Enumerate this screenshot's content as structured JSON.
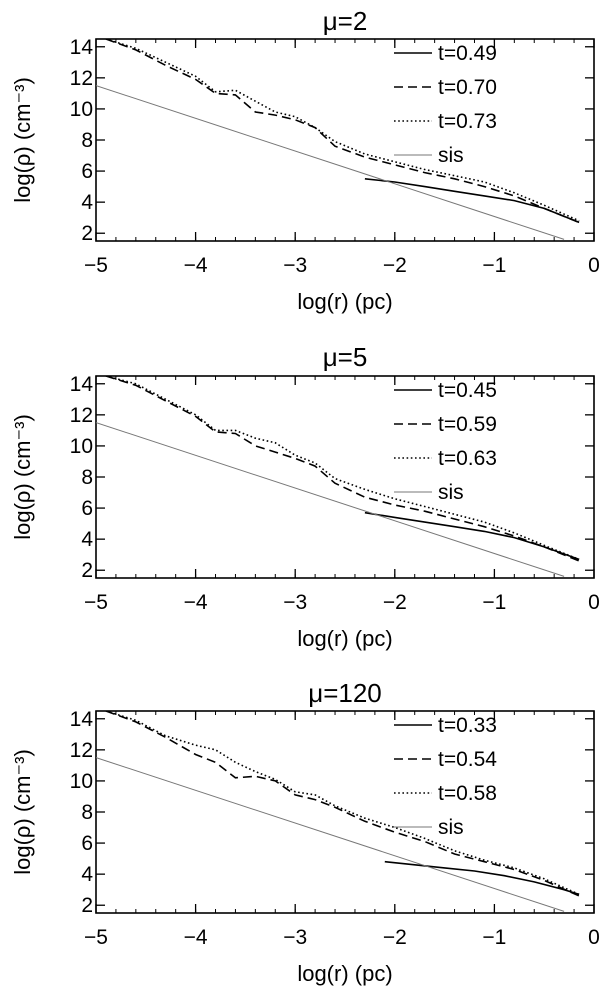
{
  "chart_data": [
    {
      "type": "line",
      "title": "μ=2",
      "xlabel": "log(r)  (pc)",
      "ylabel": "log(ρ)  (cm⁻³)",
      "xlim": [
        -5,
        0
      ],
      "ylim": [
        1.5,
        14.5
      ],
      "xticks": [
        -5,
        -4,
        -3,
        -2,
        -1,
        0
      ],
      "yticks": [
        2,
        4,
        6,
        8,
        10,
        12,
        14
      ],
      "xtick_labels": [
        "−5",
        "−4",
        "−3",
        "−2",
        "−1",
        "0"
      ],
      "ytick_labels": [
        "2",
        "4",
        "6",
        "8",
        "10",
        "12",
        "14"
      ],
      "legend_position": "top-right",
      "series": [
        {
          "name": "t=0.49",
          "style": "solid",
          "color": "#000000",
          "x": [
            -2.3,
            -2.0,
            -1.7,
            -1.4,
            -1.1,
            -0.8,
            -0.5,
            -0.15
          ],
          "y": [
            5.5,
            5.3,
            5.0,
            4.7,
            4.4,
            4.1,
            3.6,
            2.7
          ]
        },
        {
          "name": "t=0.70",
          "style": "dashed",
          "color": "#000000",
          "x": [
            -4.9,
            -4.6,
            -4.3,
            -4.0,
            -3.8,
            -3.6,
            -3.4,
            -3.2,
            -3.0,
            -2.8,
            -2.6,
            -2.3,
            -2.0,
            -1.7,
            -1.4,
            -1.1,
            -0.8,
            -0.5,
            -0.15
          ],
          "y": [
            14.5,
            13.8,
            12.8,
            11.9,
            11.0,
            10.9,
            9.8,
            9.6,
            9.3,
            8.8,
            7.6,
            6.9,
            6.4,
            5.9,
            5.5,
            5.0,
            4.4,
            3.6,
            2.7
          ]
        },
        {
          "name": "t=0.73",
          "style": "dotted",
          "color": "#000000",
          "x": [
            -4.9,
            -4.6,
            -4.3,
            -4.0,
            -3.8,
            -3.6,
            -3.4,
            -3.2,
            -3.0,
            -2.8,
            -2.6,
            -2.3,
            -2.0,
            -1.7,
            -1.4,
            -1.1,
            -0.8,
            -0.5,
            -0.15
          ],
          "y": [
            14.5,
            13.9,
            13.0,
            12.1,
            11.1,
            11.2,
            10.5,
            9.8,
            9.5,
            8.8,
            7.9,
            7.1,
            6.6,
            6.1,
            5.7,
            5.3,
            4.6,
            3.8,
            2.8
          ]
        },
        {
          "name": "sis",
          "style": "solid-thin",
          "color": "#777777",
          "x": [
            -5,
            -0.3
          ],
          "y": [
            11.5,
            1.6
          ]
        }
      ]
    },
    {
      "type": "line",
      "title": "μ=5",
      "xlabel": "log(r)  (pc)",
      "ylabel": "log(ρ)  (cm⁻³)",
      "xlim": [
        -5,
        0
      ],
      "ylim": [
        1.5,
        14.5
      ],
      "xticks": [
        -5,
        -4,
        -3,
        -2,
        -1,
        0
      ],
      "yticks": [
        2,
        4,
        6,
        8,
        10,
        12,
        14
      ],
      "xtick_labels": [
        "−5",
        "−4",
        "−3",
        "−2",
        "−1",
        "0"
      ],
      "ytick_labels": [
        "2",
        "4",
        "6",
        "8",
        "10",
        "12",
        "14"
      ],
      "legend_position": "top-right",
      "series": [
        {
          "name": "t=0.45",
          "style": "solid",
          "color": "#000000",
          "x": [
            -2.3,
            -2.0,
            -1.7,
            -1.4,
            -1.1,
            -0.8,
            -0.5,
            -0.15
          ],
          "y": [
            5.7,
            5.4,
            5.1,
            4.8,
            4.5,
            4.1,
            3.5,
            2.7
          ]
        },
        {
          "name": "t=0.59",
          "style": "dashed",
          "color": "#000000",
          "x": [
            -4.9,
            -4.6,
            -4.3,
            -4.0,
            -3.8,
            -3.6,
            -3.4,
            -3.2,
            -3.0,
            -2.8,
            -2.6,
            -2.3,
            -2.0,
            -1.7,
            -1.4,
            -1.1,
            -0.8,
            -0.5,
            -0.15
          ],
          "y": [
            14.5,
            13.9,
            12.9,
            11.9,
            10.9,
            10.8,
            10.0,
            9.6,
            9.2,
            8.7,
            7.6,
            6.7,
            6.2,
            5.8,
            5.3,
            4.8,
            4.2,
            3.5,
            2.6
          ]
        },
        {
          "name": "t=0.63",
          "style": "dotted",
          "color": "#000000",
          "x": [
            -4.9,
            -4.6,
            -4.3,
            -4.0,
            -3.8,
            -3.6,
            -3.4,
            -3.2,
            -3.0,
            -2.8,
            -2.6,
            -2.3,
            -2.0,
            -1.7,
            -1.4,
            -1.1,
            -0.8,
            -0.5,
            -0.15
          ],
          "y": [
            14.5,
            14.0,
            13.0,
            12.0,
            11.0,
            11.0,
            10.5,
            10.2,
            9.4,
            8.9,
            7.9,
            7.2,
            6.6,
            6.1,
            5.6,
            5.1,
            4.4,
            3.6,
            2.7
          ]
        },
        {
          "name": "sis",
          "style": "solid-thin",
          "color": "#777777",
          "x": [
            -5,
            -0.3
          ],
          "y": [
            11.5,
            1.6
          ]
        }
      ]
    },
    {
      "type": "line",
      "title": "μ=120",
      "xlabel": "log(r)  (pc)",
      "ylabel": "log(ρ)  (cm⁻³)",
      "xlim": [
        -5,
        0
      ],
      "ylim": [
        1.5,
        14.5
      ],
      "xticks": [
        -5,
        -4,
        -3,
        -2,
        -1,
        0
      ],
      "yticks": [
        2,
        4,
        6,
        8,
        10,
        12,
        14
      ],
      "xtick_labels": [
        "−5",
        "−4",
        "−3",
        "−2",
        "−1",
        "0"
      ],
      "ytick_labels": [
        "2",
        "4",
        "6",
        "8",
        "10",
        "12",
        "14"
      ],
      "legend_position": "top-right",
      "series": [
        {
          "name": "t=0.33",
          "style": "solid",
          "color": "#000000",
          "x": [
            -2.1,
            -1.8,
            -1.5,
            -1.2,
            -0.9,
            -0.6,
            -0.3,
            -0.15
          ],
          "y": [
            4.8,
            4.6,
            4.4,
            4.2,
            3.9,
            3.5,
            3.0,
            2.7
          ]
        },
        {
          "name": "t=0.54",
          "style": "dashed",
          "color": "#000000",
          "x": [
            -4.9,
            -4.6,
            -4.3,
            -4.0,
            -3.8,
            -3.6,
            -3.4,
            -3.2,
            -3.0,
            -2.8,
            -2.6,
            -2.3,
            -2.0,
            -1.7,
            -1.4,
            -1.1,
            -0.8,
            -0.5,
            -0.15
          ],
          "y": [
            14.5,
            13.8,
            12.8,
            11.7,
            11.2,
            10.2,
            10.3,
            10.0,
            9.1,
            8.8,
            8.3,
            7.4,
            6.7,
            6.1,
            5.3,
            4.8,
            4.3,
            3.6,
            2.6
          ]
        },
        {
          "name": "t=0.58",
          "style": "dotted",
          "color": "#000000",
          "x": [
            -4.9,
            -4.6,
            -4.3,
            -4.0,
            -3.8,
            -3.6,
            -3.4,
            -3.2,
            -3.0,
            -2.8,
            -2.6,
            -2.3,
            -2.0,
            -1.7,
            -1.4,
            -1.1,
            -0.8,
            -0.5,
            -0.15
          ],
          "y": [
            14.5,
            13.9,
            12.9,
            12.3,
            12.0,
            11.2,
            10.6,
            10.1,
            9.3,
            9.1,
            8.4,
            7.6,
            7.0,
            6.3,
            5.5,
            4.9,
            4.4,
            3.7,
            2.7
          ]
        },
        {
          "name": "sis",
          "style": "solid-thin",
          "color": "#777777",
          "x": [
            -5,
            -0.3
          ],
          "y": [
            11.5,
            1.6
          ]
        }
      ]
    }
  ]
}
